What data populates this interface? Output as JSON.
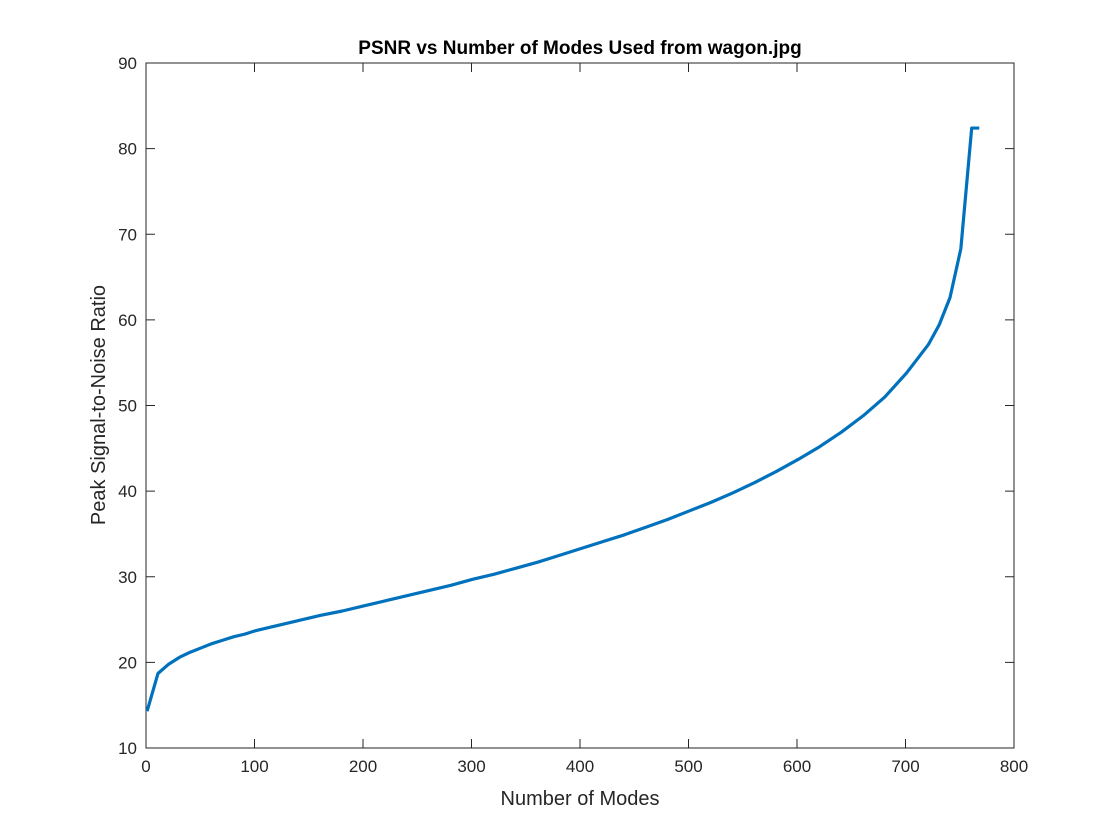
{
  "chart_data": {
    "type": "line",
    "title": "PSNR vs Number of Modes Used from wagon.jpg",
    "xlabel": "Number of Modes",
    "ylabel": "Peak Signal-to-Noise Ratio",
    "xlim": [
      0,
      800
    ],
    "ylim": [
      10,
      90
    ],
    "xticks": [
      0,
      100,
      200,
      300,
      400,
      500,
      600,
      700,
      800
    ],
    "yticks": [
      10,
      20,
      30,
      40,
      50,
      60,
      70,
      80,
      90
    ],
    "xtick_labels": [
      "0",
      "100",
      "200",
      "300",
      "400",
      "500",
      "600",
      "700",
      "800"
    ],
    "ytick_labels": [
      "10",
      "20",
      "30",
      "40",
      "50",
      "60",
      "70",
      "80",
      "90"
    ],
    "grid": false,
    "box": true,
    "line_color": "#0072BD",
    "series": [
      {
        "x": [
          1,
          11,
          21,
          31,
          41,
          51,
          61,
          71,
          81,
          91,
          101,
          121,
          141,
          161,
          181,
          201,
          221,
          241,
          261,
          281,
          301,
          321,
          341,
          361,
          381,
          401,
          421,
          441,
          461,
          481,
          501,
          521,
          541,
          561,
          581,
          601,
          621,
          641,
          661,
          681,
          701,
          721,
          731,
          741,
          751,
          761,
          768
        ],
        "y": [
          14.3,
          18.7,
          19.8,
          20.6,
          21.2,
          21.7,
          22.2,
          22.6,
          23.0,
          23.3,
          23.7,
          24.3,
          24.9,
          25.5,
          26.0,
          26.6,
          27.2,
          27.8,
          28.4,
          29.0,
          29.7,
          30.3,
          31.0,
          31.7,
          32.5,
          33.3,
          34.1,
          34.9,
          35.8,
          36.7,
          37.7,
          38.7,
          39.8,
          41.0,
          42.3,
          43.7,
          45.2,
          46.9,
          48.8,
          51.0,
          53.8,
          57.1,
          59.4,
          62.6,
          68.3,
          82.4,
          82.4
        ]
      }
    ]
  }
}
